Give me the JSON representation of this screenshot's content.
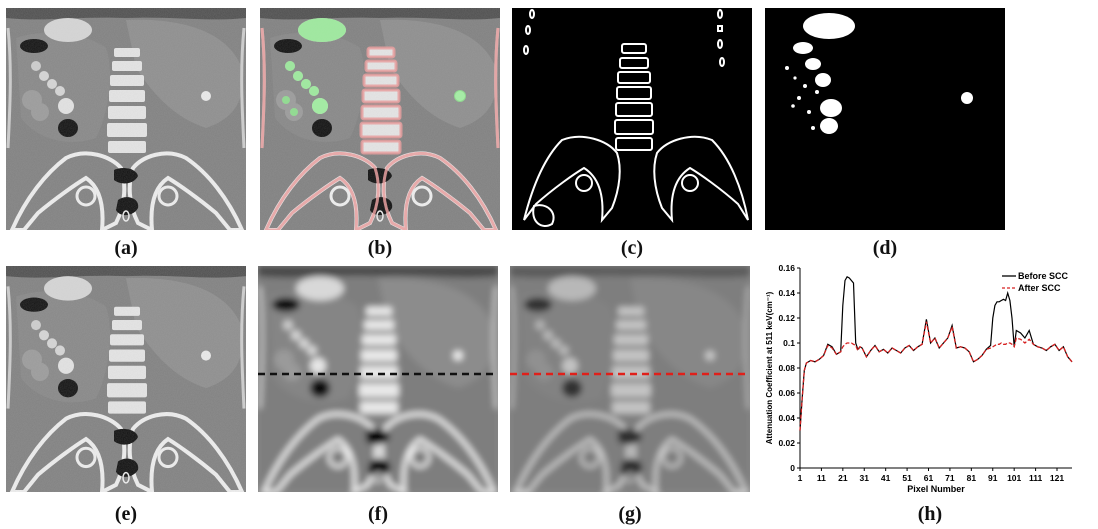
{
  "figure": {
    "captions": [
      "(a)",
      "(b)",
      "(c)",
      "(d)",
      "(e)",
      "(f)",
      "(g)",
      "(h)"
    ]
  },
  "colors": {
    "ct_background": "#808080",
    "bone": "#f0f0f0",
    "air": "#050505",
    "bone_overlay": "#e7a0a0",
    "air_overlay": "#90ee90",
    "dash_black": "#111111",
    "dash_red": "#e0201a",
    "series_before": "#000000",
    "series_after": "#d62020"
  },
  "chart_data": {
    "type": "line",
    "xlabel": "Pixel Number",
    "ylabel": "Attenuation Coefficient at 511 keV(cm⁻¹)",
    "xlim": [
      1,
      128
    ],
    "ylim": [
      0,
      0.16
    ],
    "xticks": [
      1,
      11,
      21,
      31,
      41,
      51,
      61,
      71,
      81,
      91,
      101,
      111,
      121
    ],
    "yticks": [
      "0",
      "0.02",
      "0.04",
      "0.06",
      "0.08",
      "0.1",
      "0.12",
      "0.14",
      "0.16"
    ],
    "legend_position": "top-right",
    "x": [
      1,
      2,
      3,
      4,
      6,
      8,
      10,
      12,
      14,
      16,
      18,
      20,
      21,
      22,
      23,
      24,
      25,
      26,
      27,
      28,
      29,
      30,
      32,
      34,
      36,
      38,
      40,
      42,
      44,
      46,
      48,
      50,
      52,
      54,
      56,
      58,
      60,
      62,
      64,
      66,
      68,
      70,
      72,
      74,
      76,
      78,
      80,
      82,
      84,
      86,
      88,
      90,
      91,
      92,
      93,
      94,
      95,
      96,
      97,
      98,
      99,
      100,
      101,
      102,
      104,
      106,
      108,
      110,
      112,
      114,
      116,
      118,
      120,
      122,
      124,
      126,
      128
    ],
    "series": [
      {
        "name": "Before SCC",
        "style": "solid",
        "color": "#000000",
        "values": [
          0.03,
          0.055,
          0.078,
          0.084,
          0.086,
          0.085,
          0.087,
          0.09,
          0.099,
          0.097,
          0.091,
          0.093,
          0.13,
          0.15,
          0.153,
          0.152,
          0.15,
          0.148,
          0.1,
          0.095,
          0.097,
          0.096,
          0.089,
          0.094,
          0.098,
          0.093,
          0.095,
          0.092,
          0.096,
          0.094,
          0.092,
          0.096,
          0.098,
          0.094,
          0.097,
          0.099,
          0.119,
          0.1,
          0.104,
          0.096,
          0.1,
          0.104,
          0.114,
          0.096,
          0.097,
          0.096,
          0.093,
          0.085,
          0.087,
          0.09,
          0.095,
          0.098,
          0.12,
          0.13,
          0.133,
          0.133,
          0.134,
          0.135,
          0.134,
          0.14,
          0.134,
          0.12,
          0.097,
          0.11,
          0.108,
          0.104,
          0.11,
          0.099,
          0.097,
          0.096,
          0.094,
          0.097,
          0.099,
          0.094,
          0.097,
          0.089,
          0.085
        ]
      },
      {
        "name": "After SCC",
        "style": "dashed",
        "color": "#d62020",
        "values": [
          0.03,
          0.055,
          0.078,
          0.084,
          0.086,
          0.085,
          0.087,
          0.09,
          0.098,
          0.096,
          0.091,
          0.093,
          0.097,
          0.099,
          0.1,
          0.1,
          0.1,
          0.099,
          0.098,
          0.094,
          0.097,
          0.096,
          0.089,
          0.094,
          0.098,
          0.093,
          0.095,
          0.092,
          0.096,
          0.094,
          0.092,
          0.096,
          0.098,
          0.094,
          0.097,
          0.099,
          0.117,
          0.1,
          0.104,
          0.096,
          0.1,
          0.104,
          0.113,
          0.096,
          0.097,
          0.096,
          0.093,
          0.085,
          0.087,
          0.09,
          0.095,
          0.096,
          0.097,
          0.098,
          0.099,
          0.099,
          0.1,
          0.099,
          0.099,
          0.1,
          0.1,
          0.099,
          0.097,
          0.104,
          0.103,
          0.1,
          0.103,
          0.099,
          0.097,
          0.096,
          0.094,
          0.097,
          0.099,
          0.094,
          0.097,
          0.089,
          0.085
        ]
      }
    ]
  }
}
